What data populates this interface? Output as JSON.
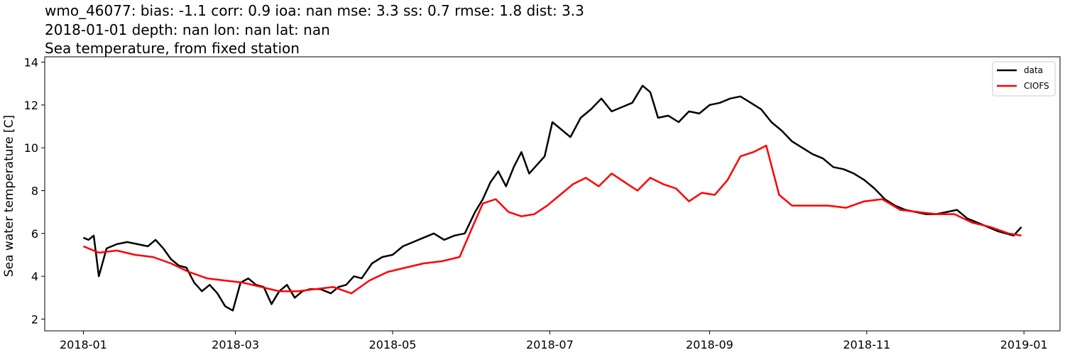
{
  "chart_data": {
    "type": "line",
    "title_lines": [
      "wmo_46077: bias: -1.1  corr: 0.9  ioa: nan  mse: 3.3  ss: 0.7  rmse: 1.8  dist: 3.3",
      "2018-01-01 depth: nan lon: nan lat: nan",
      "Sea temperature, from fixed station"
    ],
    "xlabel": "",
    "ylabel": "Sea water temperature [C]",
    "xlim": [
      "2017-12-17",
      "2019-01-15"
    ],
    "ylim": [
      1.45,
      14.25
    ],
    "xticks": [
      "2018-01",
      "2018-03",
      "2018-05",
      "2018-07",
      "2018-09",
      "2018-11",
      "2019-01"
    ],
    "yticks": [
      2,
      4,
      6,
      8,
      10,
      12,
      14
    ],
    "grid": false,
    "legend_position": "top-right",
    "colors": {
      "data": "#000000",
      "CIOFS": "#ff0000"
    },
    "series": [
      {
        "name": "data",
        "x": [
          "2018-01-01",
          "2018-01-03",
          "2018-01-05",
          "2018-01-07",
          "2018-01-10",
          "2018-01-14",
          "2018-01-18",
          "2018-01-22",
          "2018-01-26",
          "2018-01-29",
          "2018-02-01",
          "2018-02-04",
          "2018-02-07",
          "2018-02-10",
          "2018-02-13",
          "2018-02-16",
          "2018-02-19",
          "2018-02-22",
          "2018-02-25",
          "2018-02-28",
          "2018-03-03",
          "2018-03-06",
          "2018-03-09",
          "2018-03-12",
          "2018-03-15",
          "2018-03-18",
          "2018-03-21",
          "2018-03-24",
          "2018-03-27",
          "2018-03-30",
          "2018-04-03",
          "2018-04-07",
          "2018-04-10",
          "2018-04-13",
          "2018-04-16",
          "2018-04-19",
          "2018-04-23",
          "2018-04-27",
          "2018-05-01",
          "2018-05-05",
          "2018-05-09",
          "2018-05-13",
          "2018-05-17",
          "2018-05-21",
          "2018-05-25",
          "2018-05-29",
          "2018-06-02",
          "2018-06-05",
          "2018-06-08",
          "2018-06-11",
          "2018-06-14",
          "2018-06-17",
          "2018-06-20",
          "2018-06-23",
          "2018-06-26",
          "2018-06-29",
          "2018-07-02",
          "2018-07-05",
          "2018-07-09",
          "2018-07-13",
          "2018-07-17",
          "2018-07-21",
          "2018-07-25",
          "2018-07-29",
          "2018-08-02",
          "2018-08-06",
          "2018-08-09",
          "2018-08-12",
          "2018-08-16",
          "2018-08-20",
          "2018-08-24",
          "2018-08-28",
          "2018-09-01",
          "2018-09-05",
          "2018-09-09",
          "2018-09-13",
          "2018-09-17",
          "2018-09-21",
          "2018-09-25",
          "2018-09-29",
          "2018-10-03",
          "2018-10-07",
          "2018-10-11",
          "2018-10-15",
          "2018-10-19",
          "2018-10-23",
          "2018-10-27",
          "2018-10-31",
          "2018-11-04",
          "2018-11-08",
          "2018-11-12",
          "2018-11-16",
          "2018-11-20",
          "2018-11-24",
          "2018-11-28",
          "2018-12-02",
          "2018-12-06",
          "2018-12-10",
          "2018-12-14",
          "2018-12-18",
          "2018-12-22",
          "2018-12-25",
          "2018-12-28",
          "2018-12-31"
        ],
        "y": [
          5.8,
          5.7,
          5.9,
          4.0,
          5.3,
          5.5,
          5.6,
          5.5,
          5.4,
          5.7,
          5.3,
          4.8,
          4.5,
          4.4,
          3.7,
          3.3,
          3.6,
          3.2,
          2.6,
          2.4,
          3.7,
          3.9,
          3.6,
          3.5,
          2.7,
          3.3,
          3.6,
          3.0,
          3.3,
          3.4,
          3.4,
          3.2,
          3.5,
          3.6,
          4.0,
          3.9,
          4.6,
          4.9,
          5.0,
          5.4,
          5.6,
          5.8,
          6.0,
          5.7,
          5.9,
          6.0,
          7.0,
          7.6,
          8.4,
          8.9,
          8.2,
          9.1,
          9.8,
          8.8,
          9.2,
          9.6,
          11.2,
          10.9,
          10.5,
          11.4,
          11.8,
          12.3,
          11.7,
          11.9,
          12.1,
          12.9,
          12.6,
          11.4,
          11.5,
          11.2,
          11.7,
          11.6,
          12.0,
          12.1,
          12.3,
          12.4,
          12.1,
          11.8,
          11.2,
          10.8,
          10.3,
          10.0,
          9.7,
          9.5,
          9.1,
          9.0,
          8.8,
          8.5,
          8.1,
          7.6,
          7.3,
          7.1,
          7.0,
          6.9,
          6.9,
          7.0,
          7.1,
          6.7,
          6.5,
          6.3,
          6.1,
          6.0,
          5.9,
          6.3
        ]
      },
      {
        "name": "CIOFS",
        "x": [
          "2018-01-01",
          "2018-01-07",
          "2018-01-14",
          "2018-01-21",
          "2018-01-28",
          "2018-02-04",
          "2018-02-11",
          "2018-02-18",
          "2018-02-25",
          "2018-03-04",
          "2018-03-11",
          "2018-03-18",
          "2018-03-25",
          "2018-04-01",
          "2018-04-08",
          "2018-04-15",
          "2018-04-22",
          "2018-04-29",
          "2018-05-06",
          "2018-05-13",
          "2018-05-20",
          "2018-05-27",
          "2018-06-01",
          "2018-06-05",
          "2018-06-10",
          "2018-06-15",
          "2018-06-20",
          "2018-06-25",
          "2018-06-30",
          "2018-07-05",
          "2018-07-10",
          "2018-07-15",
          "2018-07-20",
          "2018-07-25",
          "2018-07-30",
          "2018-08-04",
          "2018-08-09",
          "2018-08-14",
          "2018-08-19",
          "2018-08-24",
          "2018-08-29",
          "2018-09-03",
          "2018-09-08",
          "2018-09-13",
          "2018-09-18",
          "2018-09-23",
          "2018-09-28",
          "2018-10-03",
          "2018-10-10",
          "2018-10-17",
          "2018-10-24",
          "2018-10-31",
          "2018-11-07",
          "2018-11-14",
          "2018-11-21",
          "2018-11-28",
          "2018-12-05",
          "2018-12-12",
          "2018-12-19",
          "2018-12-26",
          "2018-12-31"
        ],
        "y": [
          5.4,
          5.1,
          5.2,
          5.0,
          4.9,
          4.6,
          4.2,
          3.9,
          3.8,
          3.7,
          3.5,
          3.3,
          3.3,
          3.4,
          3.5,
          3.2,
          3.8,
          4.2,
          4.4,
          4.6,
          4.7,
          4.9,
          6.3,
          7.4,
          7.6,
          7.0,
          6.8,
          6.9,
          7.3,
          7.8,
          8.3,
          8.6,
          8.2,
          8.8,
          8.4,
          8.0,
          8.6,
          8.3,
          8.1,
          7.5,
          7.9,
          7.8,
          8.5,
          9.6,
          9.8,
          10.1,
          7.8,
          7.3,
          7.3,
          7.3,
          7.2,
          7.5,
          7.6,
          7.1,
          7.0,
          6.9,
          6.9,
          6.5,
          6.3,
          6.0,
          5.9
        ]
      }
    ]
  }
}
